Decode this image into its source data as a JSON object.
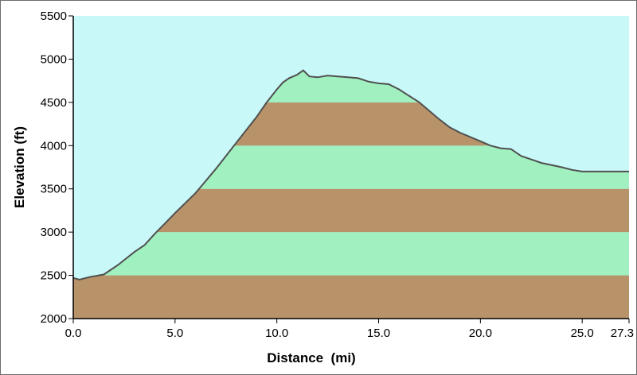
{
  "chart_data": {
    "type": "area",
    "title": "",
    "xlabel": "Distance  (mi)",
    "ylabel": "Elevation (ft)",
    "xlim": [
      0,
      27.3
    ],
    "ylim": [
      2000,
      5500
    ],
    "x_ticks": [
      0.0,
      5.0,
      10.0,
      15.0,
      20.0,
      25.0,
      27.3
    ],
    "x_tick_labels": [
      "0.0",
      "5.0",
      "10.0",
      "15.0",
      "20.0",
      "25.0",
      "27.3"
    ],
    "y_ticks": [
      2000,
      2500,
      3000,
      3500,
      4000,
      4500,
      5000,
      5500
    ],
    "y_tick_labels": [
      "2000",
      "2500",
      "3000",
      "3500",
      "4000",
      "4500",
      "5000",
      "5500"
    ],
    "grid": false,
    "legend": "none",
    "band_size": 500,
    "colors": {
      "sky": "#c8f8f8",
      "band_brown": "#b8936a",
      "band_green": "#a0f0c0",
      "profile_line": "#505050",
      "axis": "#000000"
    },
    "series": [
      {
        "x": [
          0.0,
          0.3,
          0.8,
          1.5,
          2.2,
          3.0,
          3.5,
          4.0,
          4.5,
          5.0,
          6.0,
          7.0,
          8.0,
          9.0,
          9.5,
          10.0,
          10.3,
          10.6,
          11.0,
          11.3,
          11.6,
          12.0,
          12.5,
          13.0,
          13.5,
          14.0,
          14.5,
          15.0,
          15.5,
          16.0,
          17.0,
          17.5,
          18.0,
          18.5,
          19.0,
          20.0,
          20.5,
          21.0,
          21.5,
          22.0,
          22.5,
          23.0,
          24.0,
          24.5,
          25.0,
          26.0,
          27.3
        ],
        "y": [
          2470,
          2450,
          2480,
          2510,
          2620,
          2770,
          2850,
          2980,
          3100,
          3220,
          3450,
          3730,
          4030,
          4330,
          4500,
          4650,
          4730,
          4780,
          4820,
          4870,
          4800,
          4790,
          4810,
          4800,
          4790,
          4780,
          4740,
          4720,
          4710,
          4650,
          4500,
          4400,
          4300,
          4210,
          4150,
          4050,
          4000,
          3970,
          3960,
          3880,
          3840,
          3800,
          3750,
          3720,
          3700,
          3700,
          3700
        ]
      }
    ]
  }
}
